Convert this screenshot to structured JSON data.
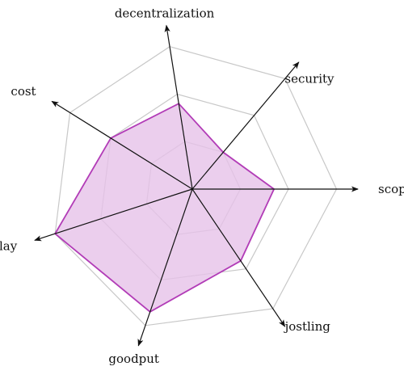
{
  "chart_data": {
    "type": "radar",
    "axes": [
      "scope",
      "security",
      "decentralization",
      "cost",
      "delay",
      "goodput",
      "jostling"
    ],
    "max": 3,
    "levels": [
      1,
      2,
      3
    ],
    "grid": true,
    "legend": "none",
    "series": [
      {
        "values": [
          1.7,
          1.0,
          1.8,
          2.0,
          3.0,
          2.7,
          1.8
        ]
      }
    ],
    "colors": {
      "stroke": "#b23cb7",
      "fill": "#e6c2e8",
      "grid": "#c8c8c8",
      "axis": "#111111"
    }
  }
}
